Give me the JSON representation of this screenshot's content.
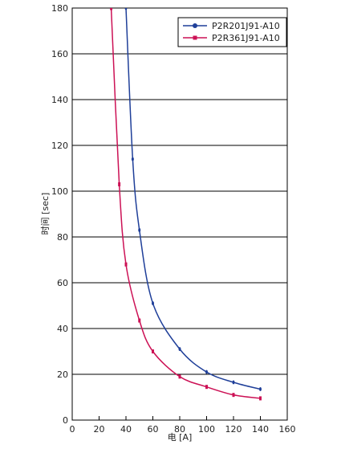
{
  "chart_data": {
    "type": "line",
    "xlabel": "电 [A]",
    "ylabel": "时间 [sec]",
    "xlim": [
      0,
      160
    ],
    "xticks": [
      0,
      20,
      40,
      60,
      80,
      100,
      120,
      140,
      160
    ],
    "ylim": [
      0,
      180
    ],
    "yticks": [
      0,
      20,
      40,
      60,
      80,
      100,
      120,
      140,
      160,
      180
    ],
    "grid": true,
    "legend": "upper right",
    "series": [
      {
        "name": "P2R201J91-A10",
        "color": "#1f3f99",
        "marker": "circle",
        "x": [
          40,
          45,
          50,
          60,
          80,
          100,
          120,
          140
        ],
        "values": [
          180,
          114,
          83,
          51,
          31,
          21,
          16.5,
          13.5
        ]
      },
      {
        "name": "P2R361J91-A10",
        "color": "#cc1155",
        "marker": "square",
        "x": [
          29,
          35,
          40,
          50,
          60,
          80,
          100,
          120,
          140
        ],
        "values": [
          180,
          103,
          68,
          43.5,
          30,
          19,
          14.5,
          11,
          9.5
        ]
      }
    ]
  }
}
